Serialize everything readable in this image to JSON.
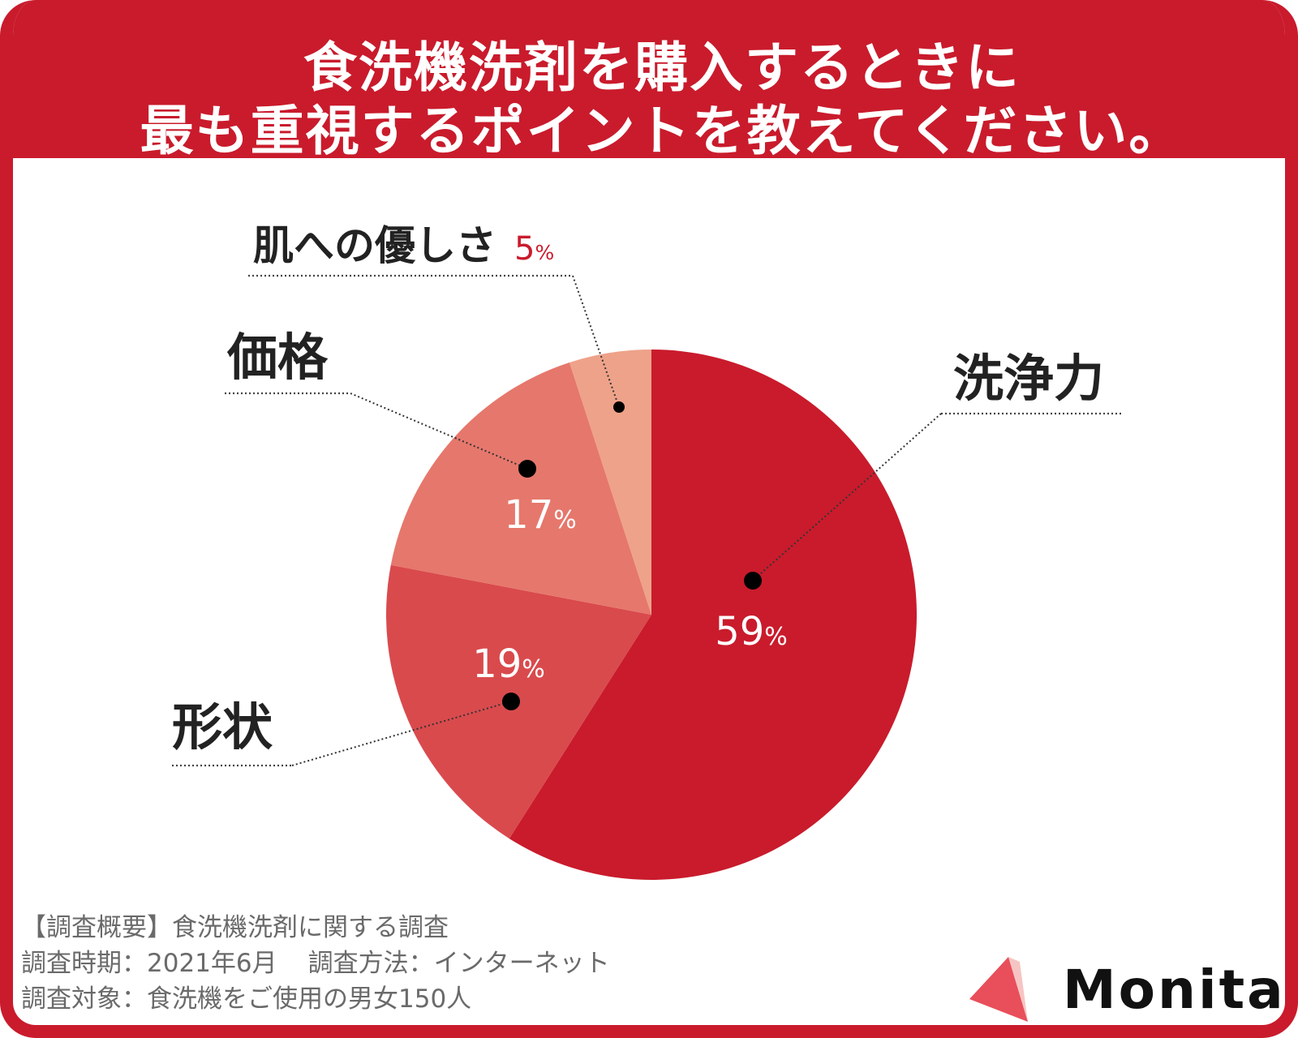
{
  "title": {
    "line1": "食洗機洗剤を購入するときに",
    "line2": "最も重視するポイントを教えてください。"
  },
  "chart_data": {
    "type": "pie",
    "title": "食洗機洗剤を購入するときに最も重視するポイントを教えてください。",
    "start": "12 o'clock, clockwise",
    "slices": [
      {
        "label": "洗浄力",
        "value": 59,
        "value_label": "59",
        "color": "#c91b2c"
      },
      {
        "label": "形状",
        "value": 19,
        "value_label": "19",
        "color": "#d94a4d"
      },
      {
        "label": "価格",
        "value": 17,
        "value_label": "17",
        "color": "#e6776c"
      },
      {
        "label": "肌への優しさ",
        "value": 5,
        "value_label": "5",
        "color": "#eea28a"
      }
    ],
    "unit": "%",
    "small_slice_label_color": "#c91b2c"
  },
  "notes": {
    "line1": "【調査概要】食洗機洗剤に関する調査",
    "line2a": "調査時期：2021年6月",
    "line2b": "調査方法：インターネット",
    "line3": "調査対象：食洗機をご使用の男女150人"
  },
  "logo": {
    "text": "Monita",
    "icon": "triangle-logo-icon",
    "color": "#e84f5a"
  }
}
